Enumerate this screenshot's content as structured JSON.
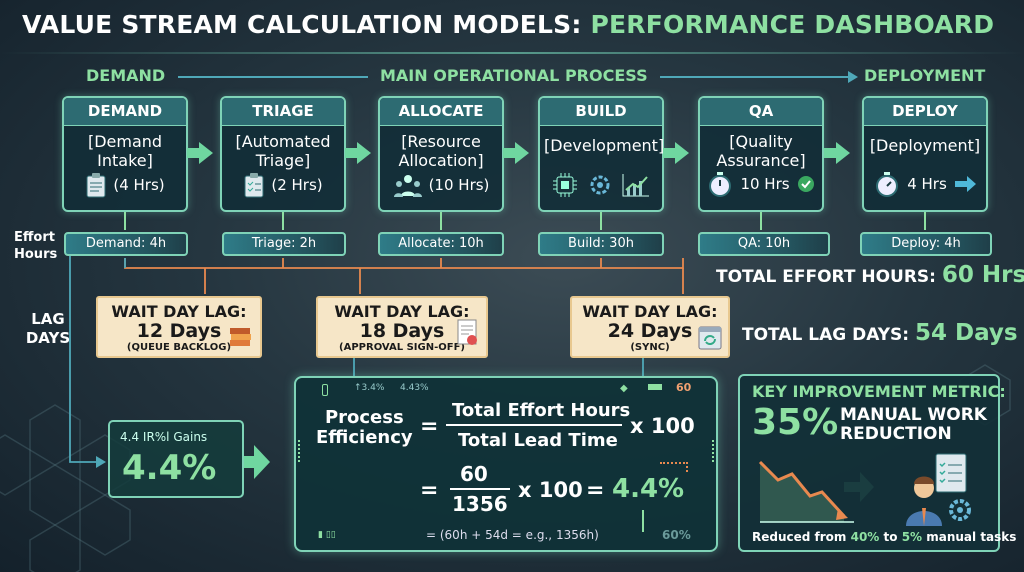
{
  "title": {
    "main": "VALUE STREAM CALCULATION MODELS: ",
    "accent": "PERFORMANCE DASHBOARD"
  },
  "flow_header": {
    "left": "DEMAND",
    "middle": "MAIN OPERATIONAL PROCESS",
    "right": "DEPLOYMENT"
  },
  "stages": [
    {
      "name": "DEMAND",
      "label": "[Demand Intake]",
      "hours": "(4 Hrs)",
      "icon": "clipboard-icon"
    },
    {
      "name": "TRIAGE",
      "label": "[Automated Triage]",
      "hours": "(2 Hrs)",
      "icon": "checklist-icon"
    },
    {
      "name": "ALLOCATE",
      "label": "[Resource Allocation]",
      "hours": "(10 Hrs)",
      "icon": "team-icon"
    },
    {
      "name": "BUILD",
      "label": "[Development]",
      "hours": "",
      "icon": "gear-chart-icon"
    },
    {
      "name": "QA",
      "label": "[Quality Assurance]",
      "hours": "10 Hrs",
      "icon": "stopwatch-check-icon"
    },
    {
      "name": "DEPLOY",
      "label": "[Deployment]",
      "hours": "4 Hrs",
      "icon": "stopwatch-arrow-icon"
    }
  ],
  "effort": {
    "label": "Effort Hours",
    "pills": [
      "Demand: 4h",
      "Triage: 2h",
      "Allocate: 10h",
      "Build: 30h",
      "QA: 10h",
      "Deploy: 4h"
    ],
    "total_label": "TOTAL EFFORT HOURS:",
    "total_value": "60 Hrs"
  },
  "lag": {
    "label": "LAG DAYS",
    "waits": [
      {
        "title": "WAIT DAY LAG:",
        "days": "12 Days",
        "note": "(QUEUE BACKLOG)"
      },
      {
        "title": "WAIT DAY LAG:",
        "days": "18 Days",
        "note": "(APPROVAL SIGN-OFF)"
      },
      {
        "title": "WAIT DAY LAG:",
        "days": "24 Days",
        "note": "(SYNC)"
      }
    ],
    "total_label": "TOTAL LAG DAYS:",
    "total_value": "54 Days"
  },
  "gains": {
    "label": "4.4 IR%l Gains",
    "value": "4.4%"
  },
  "formula": {
    "top_left_a": "↑3.4%",
    "top_left_b": "4.43%",
    "top_right": "60",
    "lhs_line1": "Process",
    "lhs_line2": "Efficiency",
    "eq": "=",
    "num": "Total Effort Hours",
    "den": "Total Lead Time",
    "mult": "x 100",
    "num2": "60",
    "den2": "1356",
    "result": "4.4%",
    "note": "= (60h + 54d = e.g., 1356h)",
    "corner": "60%"
  },
  "kpi": {
    "title": "KEY IMPROVEMENT METRIC:",
    "value": "35%",
    "desc1": "MANUAL WORK",
    "desc2": "REDUCTION",
    "footer_pre": "Reduced from ",
    "from": "40%",
    "footer_mid": " to ",
    "to": "5%",
    "footer_post": " manual tasks"
  },
  "colors": {
    "accent": "#8ee0a2",
    "teal": "#7fd3b7",
    "orange": "#e8894f",
    "note": "#f6e6c7"
  }
}
